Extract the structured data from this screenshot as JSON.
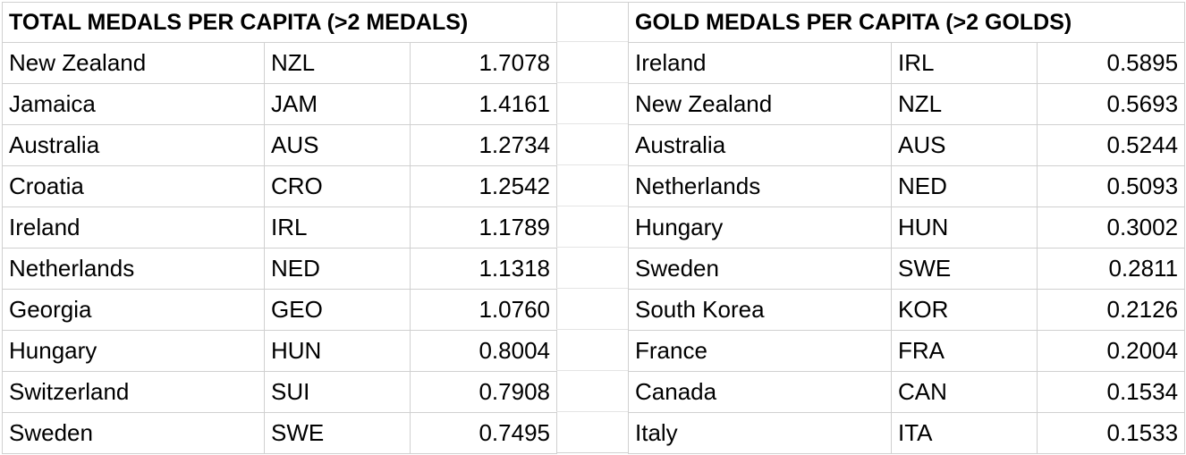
{
  "total_medals": {
    "title": "TOTAL MEDALS PER CAPITA (>2 MEDALS)",
    "rows": [
      {
        "country": "New Zealand",
        "code": "NZL",
        "value": "1.7078"
      },
      {
        "country": "Jamaica",
        "code": "JAM",
        "value": "1.4161"
      },
      {
        "country": "Australia",
        "code": "AUS",
        "value": "1.2734"
      },
      {
        "country": "Croatia",
        "code": "CRO",
        "value": "1.2542"
      },
      {
        "country": "Ireland",
        "code": "IRL",
        "value": "1.1789"
      },
      {
        "country": "Netherlands",
        "code": "NED",
        "value": "1.1318"
      },
      {
        "country": "Georgia",
        "code": "GEO",
        "value": "1.0760"
      },
      {
        "country": "Hungary",
        "code": "HUN",
        "value": "0.8004"
      },
      {
        "country": "Switzerland",
        "code": "SUI",
        "value": "0.7908"
      },
      {
        "country": "Sweden",
        "code": "SWE",
        "value": "0.7495"
      }
    ]
  },
  "gold_medals": {
    "title": "GOLD MEDALS PER CAPITA (>2 GOLDS)",
    "rows": [
      {
        "country": "Ireland",
        "code": "IRL",
        "value": "0.5895"
      },
      {
        "country": "New Zealand",
        "code": "NZL",
        "value": "0.5693"
      },
      {
        "country": "Australia",
        "code": "AUS",
        "value": "0.5244"
      },
      {
        "country": "Netherlands",
        "code": "NED",
        "value": "0.5093"
      },
      {
        "country": "Hungary",
        "code": "HUN",
        "value": "0.3002"
      },
      {
        "country": "Sweden",
        "code": "SWE",
        "value": "0.2811"
      },
      {
        "country": "South Korea",
        "code": "KOR",
        "value": "0.2126"
      },
      {
        "country": "France",
        "code": "FRA",
        "value": "0.2004"
      },
      {
        "country": "Canada",
        "code": "CAN",
        "value": "0.1534"
      },
      {
        "country": "Italy",
        "code": "ITA",
        "value": "0.1533"
      }
    ]
  }
}
